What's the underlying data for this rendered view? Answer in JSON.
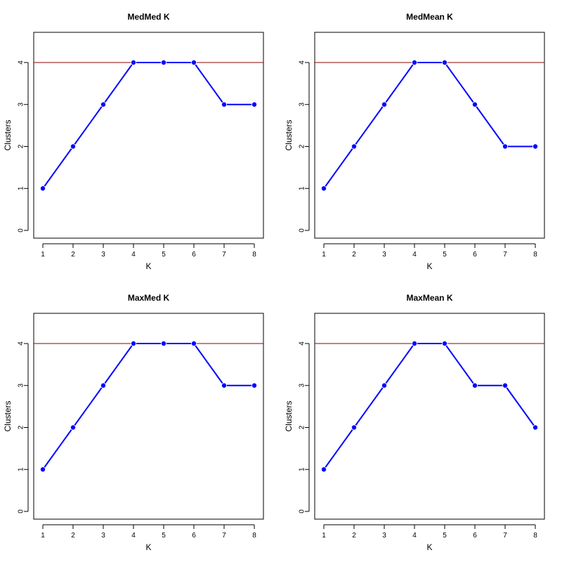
{
  "chart_data": [
    {
      "type": "line",
      "title": "MedMed K",
      "xlabel": "K",
      "ylabel": "Clusters",
      "x": [
        1,
        2,
        3,
        4,
        5,
        6,
        7,
        8
      ],
      "y": [
        1,
        2,
        3,
        4,
        4,
        4,
        3,
        3
      ],
      "xlim": [
        1,
        8
      ],
      "ylim": [
        0,
        4
      ],
      "xticks": [
        "1",
        "2",
        "3",
        "4",
        "5",
        "6",
        "7",
        "8"
      ],
      "yticks": [
        "0",
        "1",
        "2",
        "3",
        "4"
      ],
      "reference_line": 4,
      "grid": false
    },
    {
      "type": "line",
      "title": "MedMean K",
      "xlabel": "K",
      "ylabel": "Clusters",
      "x": [
        1,
        2,
        3,
        4,
        5,
        6,
        7,
        8
      ],
      "y": [
        1,
        2,
        3,
        4,
        4,
        3,
        2,
        2
      ],
      "xlim": [
        1,
        8
      ],
      "ylim": [
        0,
        4
      ],
      "xticks": [
        "1",
        "2",
        "3",
        "4",
        "5",
        "6",
        "7",
        "8"
      ],
      "yticks": [
        "0",
        "1",
        "2",
        "3",
        "4"
      ],
      "reference_line": 4,
      "grid": false
    },
    {
      "type": "line",
      "title": "MaxMed K",
      "xlabel": "K",
      "ylabel": "Clusters",
      "x": [
        1,
        2,
        3,
        4,
        5,
        6,
        7,
        8
      ],
      "y": [
        1,
        2,
        3,
        4,
        4,
        4,
        3,
        3
      ],
      "xlim": [
        1,
        8
      ],
      "ylim": [
        0,
        4
      ],
      "xticks": [
        "1",
        "2",
        "3",
        "4",
        "5",
        "6",
        "7",
        "8"
      ],
      "yticks": [
        "0",
        "1",
        "2",
        "3",
        "4"
      ],
      "reference_line": 4,
      "grid": false
    },
    {
      "type": "line",
      "title": "MaxMean K",
      "xlabel": "K",
      "ylabel": "Clusters",
      "x": [
        1,
        2,
        3,
        4,
        5,
        6,
        7,
        8
      ],
      "y": [
        1,
        2,
        3,
        4,
        4,
        3,
        3,
        2
      ],
      "xlim": [
        1,
        8
      ],
      "ylim": [
        0,
        4
      ],
      "xticks": [
        "1",
        "2",
        "3",
        "4",
        "5",
        "6",
        "7",
        "8"
      ],
      "yticks": [
        "0",
        "1",
        "2",
        "3",
        "4"
      ],
      "reference_line": 4,
      "grid": false
    }
  ],
  "colors": {
    "series_line": "#0000ff",
    "series_point": "#0000ff",
    "reference_line": "#8b0000",
    "axis": "#000000",
    "background": "#ffffff"
  }
}
